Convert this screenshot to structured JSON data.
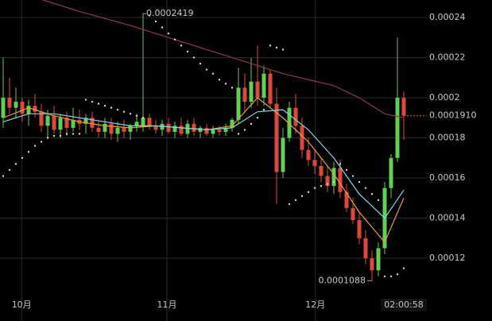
{
  "chart_data": {
    "type": "candlestick",
    "open": [
      0.00019,
      0.0002,
      0.000195,
      0.000198,
      0.000192,
      0.000196,
      0.000193,
      0.000186,
      0.000191,
      0.000184,
      0.00019,
      0.000185,
      0.000189,
      0.000187,
      0.00019,
      0.000185,
      0.000183,
      0.000187,
      0.000182,
      0.000185,
      0.000183,
      0.000186,
      0.000186,
      0.00019,
      0.000186,
      0.000184,
      0.000187,
      0.000183,
      0.000186,
      0.000182,
      0.000187,
      0.000183,
      0.000185,
      0.000182,
      0.000184,
      0.000183,
      0.000185,
      0.000189,
      0.000205,
      0.000198,
      0.000208,
      0.0002,
      0.000212,
      0.000197,
      0.000163,
      0.00018,
      0.000195,
      0.000186,
      0.000174,
      0.000169,
      0.000166,
      0.000161,
      0.000156,
      0.000165,
      0.000153,
      0.000145,
      0.000139,
      0.00013,
      0.00012,
      0.000114,
      0.000125,
      0.000155,
      0.00017,
      0.0002
    ],
    "high": [
      0.00022,
      0.00021,
      0.000205,
      0.0002,
      0.000199,
      0.000202,
      0.000197,
      0.000194,
      0.000196,
      0.000192,
      0.000193,
      0.000195,
      0.000194,
      0.000192,
      0.000193,
      0.000189,
      0.00019,
      0.00019,
      0.000188,
      0.000189,
      0.000187,
      0.000192,
      0.0002419,
      0.000192,
      0.000189,
      0.000189,
      0.00019,
      0.000188,
      0.00019,
      0.000189,
      0.00019,
      0.000186,
      0.000187,
      0.000186,
      0.000186,
      0.000187,
      0.00019,
      0.000215,
      0.000212,
      0.00022,
      0.000226,
      0.000216,
      0.000214,
      0.000205,
      0.000185,
      0.000198,
      0.000202,
      0.00019,
      0.00018,
      0.000174,
      0.00017,
      0.000166,
      0.000168,
      0.000169,
      0.000157,
      0.00015,
      0.000143,
      0.000134,
      0.000124,
      0.000128,
      0.000158,
      0.000172,
      0.00023,
      0.000203
    ],
    "low": [
      0.000185,
      0.000192,
      0.00019,
      0.000188,
      0.000186,
      0.00019,
      0.000183,
      0.00018,
      0.000182,
      0.00018,
      0.000181,
      0.000183,
      0.000184,
      0.000182,
      0.000183,
      0.00018,
      0.00018,
      0.000179,
      0.000178,
      0.00018,
      0.000179,
      0.000183,
      0.000183,
      0.000184,
      0.000182,
      0.000181,
      0.000182,
      0.00018,
      0.000181,
      0.00018,
      0.000181,
      0.00018,
      0.000181,
      0.00018,
      0.000181,
      0.000181,
      0.000183,
      0.000187,
      0.000193,
      0.000195,
      0.000196,
      0.000196,
      0.000195,
      0.000147,
      0.00016,
      0.000178,
      0.000182,
      0.00017,
      0.000166,
      0.000162,
      0.000158,
      0.000153,
      0.000152,
      0.00015,
      0.000143,
      0.000137,
      0.000127,
      0.000117,
      0.0001088,
      0.000111,
      0.000122,
      0.00015,
      0.000168,
      0.000179
    ],
    "close": [
      0.0002,
      0.000195,
      0.000198,
      0.000192,
      0.000196,
      0.000193,
      0.000186,
      0.000191,
      0.000184,
      0.00019,
      0.000185,
      0.000189,
      0.000187,
      0.00019,
      0.000185,
      0.000183,
      0.000187,
      0.000182,
      0.000185,
      0.000183,
      0.000186,
      0.000188,
      0.00019,
      0.000186,
      0.000184,
      0.000187,
      0.000183,
      0.000186,
      0.000182,
      0.000187,
      0.000183,
      0.000185,
      0.000182,
      0.000184,
      0.000183,
      0.000185,
      0.000189,
      0.000205,
      0.000198,
      0.000208,
      0.0002,
      0.000212,
      0.000197,
      0.000163,
      0.00018,
      0.000195,
      0.000186,
      0.000174,
      0.000169,
      0.000166,
      0.000161,
      0.000156,
      0.000165,
      0.000153,
      0.000145,
      0.000139,
      0.00013,
      0.00012,
      0.000114,
      0.000125,
      0.000155,
      0.00017,
      0.0002,
      0.000191
    ],
    "up_color": "#5fcf52",
    "down_color": "#e0473c",
    "overlays": [
      {
        "color": "#e8a040",
        "x": [
          0,
          4,
          8,
          12,
          16,
          20,
          24,
          28,
          32,
          36,
          40,
          44,
          48,
          52,
          56,
          60,
          63
        ],
        "values": [
          0.00019,
          0.000195,
          0.000191,
          0.000188,
          0.000186,
          0.000185,
          0.000186,
          0.000185,
          0.000184,
          0.000186,
          0.0002,
          0.00019,
          0.000178,
          0.000162,
          0.000143,
          0.000128,
          0.00015
        ]
      },
      {
        "color": "#86d6e6",
        "x": [
          0,
          4,
          8,
          12,
          16,
          20,
          24,
          28,
          32,
          36,
          40,
          44,
          48,
          52,
          56,
          60,
          63
        ],
        "values": [
          0.000188,
          0.000192,
          0.000192,
          0.00019,
          0.000188,
          0.000186,
          0.000186,
          0.000185,
          0.000184,
          0.000185,
          0.000193,
          0.000194,
          0.000184,
          0.00017,
          0.000152,
          0.00014,
          0.000154
        ]
      },
      {
        "color": "#8c3a4c",
        "x": [
          6,
          12,
          20,
          28,
          36,
          44,
          52,
          56,
          60,
          63
        ],
        "values": [
          0.000249,
          0.000243,
          0.000236,
          0.000228,
          0.00022,
          0.000212,
          0.000206,
          0.0002,
          0.000192,
          0.00019
        ]
      }
    ],
    "sar": {
      "color": "#d8d8d8",
      "values": [
        0.000161,
        0.000164,
        0.000167,
        0.00017,
        0.000173,
        0.000176,
        0.000178,
        0.00018,
        0.000181,
        0.000181,
        0.000182,
        0.000182,
        0.000182,
        0.000199,
        0.000198,
        0.000197,
        0.000196,
        0.000195,
        0.000194,
        0.000193,
        0.000192,
        0.000191,
        0.00019,
        0.000241,
        0.000238,
        0.000235,
        0.000232,
        0.000229,
        0.000226,
        0.000223,
        0.00022,
        0.000217,
        0.000214,
        0.000212,
        0.000209,
        0.000207,
        0.000205,
        0.000182,
        0.000184,
        0.000187,
        0.00019,
        0.000194,
        0.000226,
        0.000225,
        0.000224,
        0.000147,
        0.000149,
        0.000151,
        0.000153,
        0.000155,
        0.000156,
        0.000157,
        0.000158,
        0.000167,
        0.000164,
        0.000161,
        0.000158,
        0.000155,
        0.000152,
        0.000149,
        0.000111,
        0.000111,
        0.000112,
        0.000115
      ]
    },
    "ylim": [
      0.0001022,
      0.0002487
    ],
    "yticks": [
      0.00012,
      0.00014,
      0.00016,
      0.00018,
      0.0002,
      0.00022,
      0.00024
    ],
    "xticks": [
      {
        "value": 2.9,
        "label": "10月"
      },
      {
        "value": 25.75,
        "label": "11月"
      },
      {
        "value": 49.1,
        "label": "12月"
      }
    ],
    "grid": true,
    "annotations": [
      {
        "text": "0.0002419",
        "x": 22,
        "y": 0.0002419
      },
      {
        "text": "0.0001088",
        "x": 58,
        "y": 0.0001088
      }
    ],
    "last_price": {
      "value": 0.000191,
      "label": "0.0001910"
    },
    "time_label": "02:00:58"
  }
}
